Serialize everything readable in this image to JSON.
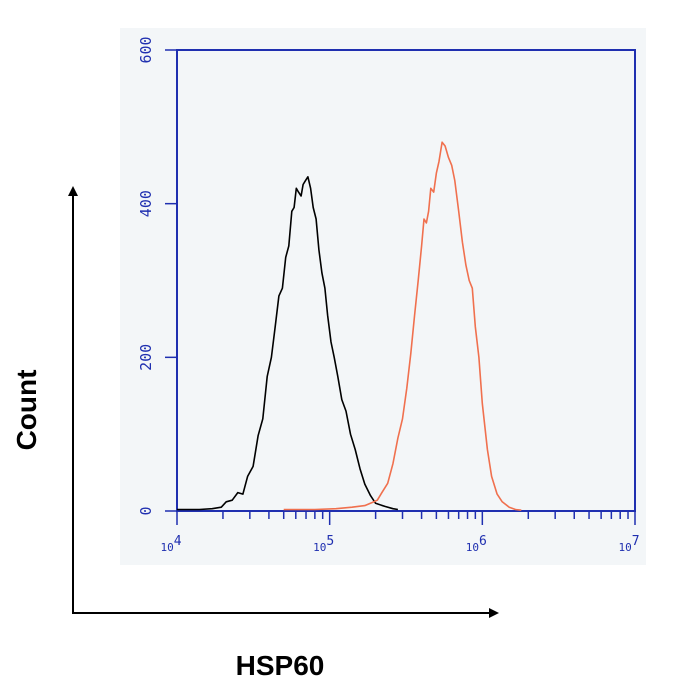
{
  "chart_data": {
    "type": "line",
    "title": "",
    "xlabel": "HSP60",
    "ylabel": "Count",
    "x_scale": "log",
    "xlim": [
      10000,
      10000000
    ],
    "ylim": [
      0,
      600
    ],
    "x_ticks": [
      {
        "value": 10000,
        "base": "10",
        "exp": "4"
      },
      {
        "value": 100000,
        "base": "10",
        "exp": "5"
      },
      {
        "value": 1000000,
        "base": "10",
        "exp": "6"
      },
      {
        "value": 10000000,
        "base": "10",
        "exp": "7"
      }
    ],
    "y_ticks": [
      {
        "value": 0,
        "label": "0"
      },
      {
        "value": 200,
        "label": "200"
      },
      {
        "value": 400,
        "label": "400"
      },
      {
        "value": 600,
        "label": "600"
      }
    ],
    "grid": false,
    "legend": "none",
    "colors": {
      "frame": "#1f2fb0",
      "panel_bg": "#f3f6f8",
      "series_control": "#000000",
      "series_stained": "#f0704e"
    },
    "series": [
      {
        "color": "#000000",
        "x": [
          10000,
          14000,
          17000,
          19500,
          21000,
          23000,
          25000,
          27000,
          29000,
          31500,
          34000,
          36500,
          39000,
          41500,
          44000,
          46500,
          49000,
          51500,
          54000,
          56500,
          58500,
          60500,
          62500,
          65000,
          67000,
          69500,
          72000,
          75000,
          78000,
          81500,
          85000,
          89000,
          93000,
          97000,
          102000,
          107000,
          113000,
          120000,
          128000,
          137000,
          147000,
          158000,
          170000,
          185000,
          200000,
          230000,
          260000,
          280000
        ],
        "values": [
          2,
          2,
          3,
          5,
          12,
          14,
          24,
          22,
          45,
          58,
          98,
          120,
          175,
          200,
          240,
          280,
          290,
          330,
          345,
          390,
          395,
          420,
          415,
          410,
          425,
          430,
          435,
          420,
          395,
          380,
          340,
          310,
          290,
          255,
          220,
          200,
          175,
          145,
          130,
          100,
          80,
          55,
          35,
          20,
          10,
          6,
          3,
          2
        ]
      },
      {
        "color": "#f0704e",
        "x": [
          50000,
          80000,
          110000,
          140000,
          170000,
          190000,
          205000,
          220000,
          240000,
          260000,
          280000,
          300000,
          320000,
          340000,
          360000,
          380000,
          400000,
          415000,
          430000,
          445000,
          460000,
          480000,
          500000,
          520000,
          545000,
          570000,
          600000,
          630000,
          660000,
          700000,
          740000,
          780000,
          820000,
          860000,
          900000,
          950000,
          1000000,
          1080000,
          1150000,
          1250000,
          1350000,
          1500000,
          1650000,
          1800000
        ],
        "values": [
          2,
          2,
          3,
          5,
          7,
          11,
          14,
          24,
          36,
          62,
          95,
          120,
          160,
          205,
          255,
          300,
          345,
          380,
          375,
          390,
          420,
          415,
          440,
          455,
          480,
          475,
          460,
          450,
          430,
          390,
          350,
          320,
          300,
          290,
          240,
          200,
          140,
          80,
          45,
          22,
          12,
          5,
          2,
          1
        ]
      }
    ]
  }
}
